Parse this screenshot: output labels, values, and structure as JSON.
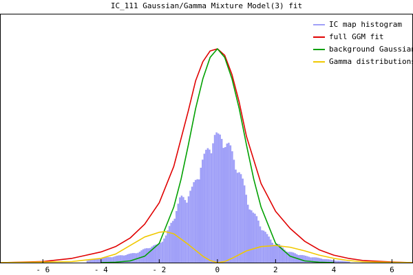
{
  "chart_data": {
    "type": "line",
    "title": "IC_111 Gaussian/Gamma Mixture Model(3) fit",
    "xlabel": "",
    "ylabel": "",
    "xlim": [
      -7.45,
      6.7
    ],
    "ylim": [
      0,
      1.0
    ],
    "x_ticks": [
      -6,
      -4,
      -2,
      0,
      2,
      4,
      6
    ],
    "x_tick_labels": [
      "- 6",
      "- 4",
      "- 2",
      "0",
      "2",
      "4",
      "6"
    ],
    "legend_position": "top-right",
    "grid": false,
    "colors": {
      "histogram": "#a0a0f8",
      "full_fit": "#e00000",
      "background": "#00a000",
      "gamma": "#f0c800"
    },
    "histogram": {
      "name": "IC map histogram",
      "bin_width": 0.06,
      "x": [
        -4.5,
        -4.0,
        -3.5,
        -3.0,
        -2.7,
        -2.4,
        -2.1,
        -1.8,
        -1.5,
        -1.3,
        -1.1,
        -0.9,
        -0.75,
        -0.6,
        -0.45,
        -0.3,
        -0.15,
        0.0,
        0.15,
        0.3,
        0.45,
        0.6,
        0.75,
        0.9,
        1.05,
        1.2,
        1.35,
        1.5,
        1.7,
        1.9,
        2.1,
        2.4,
        2.7,
        3.0,
        3.5,
        4.0,
        4.5
      ],
      "values": [
        0.01,
        0.02,
        0.03,
        0.04,
        0.05,
        0.07,
        0.08,
        0.12,
        0.22,
        0.29,
        0.3,
        0.33,
        0.38,
        0.45,
        0.48,
        0.53,
        0.58,
        0.56,
        0.58,
        0.54,
        0.5,
        0.46,
        0.4,
        0.34,
        0.27,
        0.22,
        0.2,
        0.16,
        0.12,
        0.09,
        0.08,
        0.05,
        0.04,
        0.03,
        0.02,
        0.01,
        0.005
      ]
    },
    "series": [
      {
        "name": "full GGM fit",
        "x": [
          -7.45,
          -6.0,
          -5.0,
          -4.5,
          -4.0,
          -3.5,
          -3.0,
          -2.5,
          -2.0,
          -1.5,
          -1.0,
          -0.75,
          -0.5,
          -0.25,
          0.0,
          0.25,
          0.5,
          0.75,
          1.0,
          1.5,
          2.0,
          2.5,
          3.0,
          3.5,
          4.0,
          4.5,
          5.0,
          6.0,
          6.7
        ],
        "values": [
          0.0,
          0.005,
          0.02,
          0.035,
          0.05,
          0.075,
          0.115,
          0.18,
          0.28,
          0.45,
          0.71,
          0.85,
          0.94,
          0.99,
          1.0,
          0.97,
          0.88,
          0.75,
          0.59,
          0.37,
          0.24,
          0.16,
          0.1,
          0.06,
          0.035,
          0.02,
          0.01,
          0.003,
          0.0
        ]
      },
      {
        "name": "background Gaussian",
        "x": [
          -4.0,
          -3.5,
          -3.0,
          -2.5,
          -2.0,
          -1.5,
          -1.25,
          -1.0,
          -0.75,
          -0.5,
          -0.25,
          0.0,
          0.25,
          0.5,
          0.75,
          1.0,
          1.25,
          1.5,
          2.0,
          2.5,
          3.0,
          3.5,
          4.0
        ],
        "values": [
          0.0,
          0.002,
          0.008,
          0.03,
          0.09,
          0.26,
          0.39,
          0.55,
          0.72,
          0.86,
          0.96,
          1.0,
          0.96,
          0.86,
          0.72,
          0.55,
          0.39,
          0.26,
          0.09,
          0.03,
          0.008,
          0.002,
          0.0
        ]
      },
      {
        "name": "Gamma distributions",
        "x": [
          -7.45,
          -5.0,
          -4.0,
          -3.5,
          -3.0,
          -2.5,
          -2.0,
          -1.8,
          -1.5,
          -1.0,
          -0.5,
          -0.25,
          0.0,
          0.25,
          0.5,
          1.0,
          1.5,
          2.0,
          2.5,
          3.0,
          3.5,
          4.0,
          4.5,
          5.0,
          6.7
        ],
        "values": [
          0.0,
          0.005,
          0.02,
          0.04,
          0.08,
          0.12,
          0.142,
          0.145,
          0.135,
          0.085,
          0.03,
          0.01,
          0.0,
          0.005,
          0.02,
          0.055,
          0.075,
          0.08,
          0.072,
          0.055,
          0.035,
          0.02,
          0.01,
          0.004,
          0.0
        ]
      }
    ]
  }
}
